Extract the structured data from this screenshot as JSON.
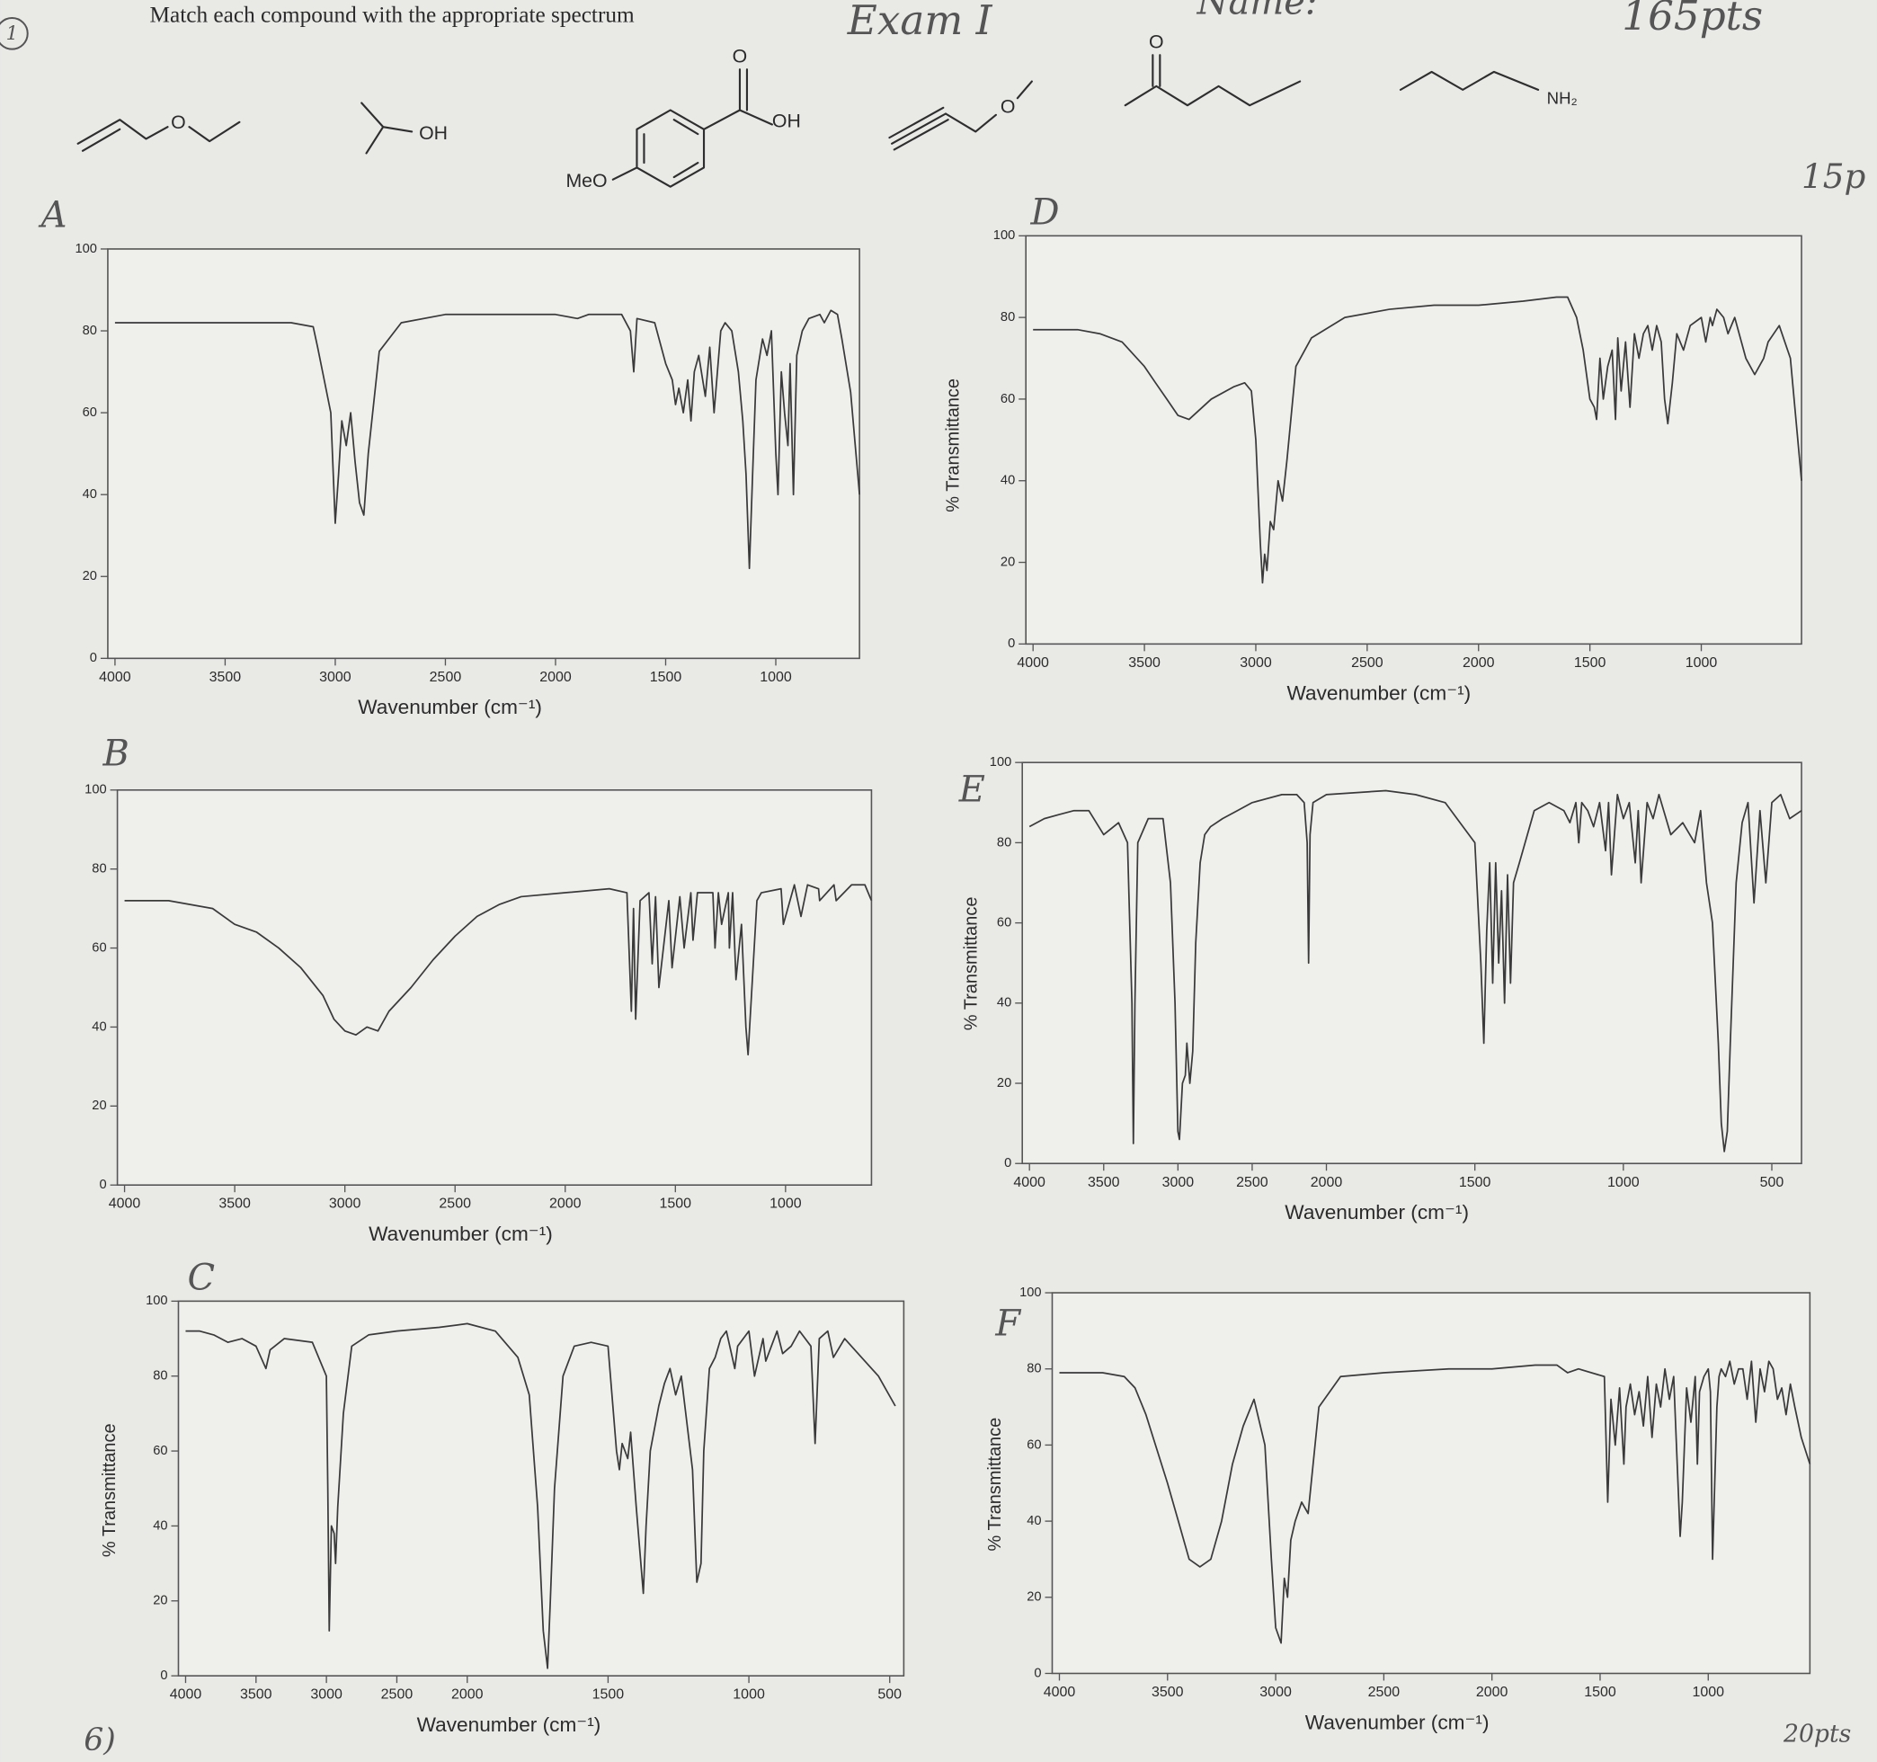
{
  "header": {
    "number": "1",
    "instruction": "Match each compound with the appropriate spectrum",
    "exam": "Exam I",
    "name": "Name:",
    "points": "165pts"
  },
  "structure_labels": [
    "O",
    "OH",
    "O",
    "OH",
    "MeO",
    "O",
    "O",
    "NH₂"
  ],
  "notes": {
    "section_points": "15p",
    "bottom_points": "20pts",
    "next_question": "6)"
  },
  "chart_data": [
    {
      "type": "line",
      "title": "A",
      "xlabel": "Wavenumber (cm⁻¹)",
      "color": "#3a3a3a",
      "xlim": [
        4000,
        620
      ],
      "ylim": [
        0,
        100
      ],
      "xticks": [
        4000,
        3500,
        3000,
        2500,
        2000,
        1500,
        1000
      ],
      "yticks": [
        0,
        20,
        40,
        60,
        80,
        100
      ],
      "x": [
        4000,
        3500,
        3200,
        3100,
        3080,
        3050,
        3020,
        3000,
        2985,
        2970,
        2950,
        2930,
        2910,
        2890,
        2870,
        2850,
        2800,
        2700,
        2500,
        2200,
        2000,
        1900,
        1850,
        1800,
        1700,
        1660,
        1645,
        1630,
        1550,
        1500,
        1470,
        1455,
        1440,
        1420,
        1400,
        1385,
        1370,
        1350,
        1320,
        1300,
        1280,
        1250,
        1230,
        1200,
        1170,
        1150,
        1135,
        1120,
        1105,
        1090,
        1060,
        1040,
        1020,
        1000,
        990,
        975,
        960,
        945,
        935,
        920,
        905,
        880,
        850,
        800,
        780,
        750,
        720,
        700,
        660,
        620
      ],
      "values": [
        82,
        82,
        82,
        81,
        76,
        68,
        60,
        33,
        45,
        58,
        52,
        60,
        48,
        38,
        35,
        50,
        75,
        82,
        84,
        84,
        84,
        83,
        84,
        84,
        84,
        80,
        70,
        83,
        82,
        72,
        68,
        62,
        66,
        60,
        68,
        58,
        70,
        74,
        64,
        76,
        60,
        80,
        82,
        80,
        70,
        58,
        45,
        22,
        45,
        68,
        78,
        74,
        80,
        50,
        40,
        70,
        60,
        52,
        72,
        40,
        74,
        80,
        83,
        84,
        82,
        85,
        84,
        78,
        65,
        40
      ]
    },
    {
      "type": "line",
      "title": "B",
      "xlabel": "Wavenumber (cm⁻¹)",
      "color": "#3a3a3a",
      "xlim": [
        4000,
        610
      ],
      "ylim": [
        0,
        100
      ],
      "xticks": [
        4000,
        3500,
        3000,
        2500,
        2000,
        1500,
        1000
      ],
      "yticks": [
        0,
        20,
        40,
        60,
        80,
        100
      ],
      "x": [
        4000,
        3800,
        3600,
        3500,
        3400,
        3300,
        3200,
        3100,
        3050,
        3000,
        2950,
        2900,
        2850,
        2800,
        2700,
        2600,
        2500,
        2400,
        2300,
        2200,
        2000,
        1800,
        1720,
        1700,
        1690,
        1680,
        1660,
        1620,
        1605,
        1590,
        1575,
        1530,
        1515,
        1480,
        1460,
        1430,
        1420,
        1400,
        1330,
        1320,
        1305,
        1290,
        1260,
        1255,
        1240,
        1225,
        1200,
        1180,
        1170,
        1130,
        1110,
        1020,
        1010,
        960,
        930,
        900,
        850,
        845,
        780,
        770,
        700,
        640,
        610
      ],
      "values": [
        72,
        72,
        70,
        66,
        64,
        60,
        55,
        48,
        42,
        39,
        38,
        40,
        39,
        44,
        50,
        57,
        63,
        68,
        71,
        73,
        74,
        75,
        74,
        44,
        70,
        42,
        72,
        74,
        56,
        73,
        50,
        72,
        55,
        73,
        60,
        74,
        62,
        74,
        74,
        60,
        74,
        66,
        74,
        60,
        74,
        52,
        66,
        40,
        33,
        72,
        74,
        75,
        66,
        76,
        68,
        76,
        75,
        72,
        76,
        72,
        76,
        76,
        72
      ]
    },
    {
      "type": "line",
      "title": "C",
      "xlabel": "Wavenumber (cm⁻¹)",
      "ylabel": "% Transmittance",
      "color": "#3a3a3a",
      "xlim": [
        4000,
        450
      ],
      "ylim": [
        0,
        100
      ],
      "xscale": {
        "break": 2000,
        "factor": 2
      },
      "xticks": [
        4000,
        3500,
        3000,
        2500,
        2000,
        1500,
        1000,
        500
      ],
      "yticks": [
        0,
        20,
        40,
        60,
        80,
        100
      ],
      "x": [
        4000,
        3900,
        3800,
        3700,
        3600,
        3500,
        3430,
        3400,
        3300,
        3100,
        3000,
        2990,
        2980,
        2965,
        2945,
        2935,
        2920,
        2880,
        2820,
        2700,
        2500,
        2200,
        2000,
        1900,
        1820,
        1780,
        1750,
        1730,
        1715,
        1705,
        1690,
        1660,
        1620,
        1560,
        1500,
        1470,
        1460,
        1450,
        1430,
        1420,
        1400,
        1375,
        1365,
        1350,
        1320,
        1300,
        1280,
        1260,
        1240,
        1200,
        1185,
        1170,
        1160,
        1140,
        1120,
        1100,
        1080,
        1050,
        1040,
        1000,
        980,
        950,
        940,
        900,
        880,
        850,
        820,
        780,
        765,
        750,
        720,
        700,
        660,
        600,
        540,
        480
      ],
      "values": [
        92,
        92,
        91,
        89,
        90,
        88,
        82,
        87,
        90,
        89,
        80,
        50,
        12,
        40,
        38,
        30,
        45,
        70,
        88,
        91,
        92,
        93,
        94,
        92,
        85,
        75,
        45,
        12,
        2,
        20,
        50,
        80,
        88,
        89,
        88,
        60,
        55,
        62,
        58,
        65,
        45,
        22,
        40,
        60,
        72,
        78,
        82,
        75,
        80,
        55,
        25,
        30,
        60,
        82,
        85,
        90,
        92,
        82,
        88,
        92,
        80,
        90,
        84,
        92,
        86,
        88,
        92,
        88,
        62,
        90,
        92,
        85,
        90,
        85,
        80,
        72
      ]
    },
    {
      "type": "line",
      "title": "D",
      "xlabel": "Wavenumber (cm⁻¹)",
      "ylabel": "% Transmittance",
      "color": "#3a3a3a",
      "xlim": [
        4000,
        550
      ],
      "ylim": [
        0,
        100
      ],
      "xticks": [
        4000,
        3500,
        3000,
        2500,
        2000,
        1500,
        1000
      ],
      "yticks": [
        0,
        20,
        40,
        60,
        80,
        100
      ],
      "x": [
        4000,
        3800,
        3700,
        3600,
        3500,
        3450,
        3400,
        3350,
        3300,
        3200,
        3100,
        3050,
        3020,
        3000,
        2980,
        2970,
        2960,
        2950,
        2935,
        2920,
        2900,
        2880,
        2860,
        2820,
        2750,
        2600,
        2400,
        2200,
        2000,
        1800,
        1650,
        1600,
        1560,
        1530,
        1500,
        1480,
        1470,
        1455,
        1440,
        1420,
        1400,
        1385,
        1375,
        1360,
        1340,
        1320,
        1300,
        1280,
        1260,
        1240,
        1220,
        1200,
        1180,
        1165,
        1150,
        1130,
        1110,
        1080,
        1050,
        1000,
        980,
        960,
        950,
        930,
        900,
        880,
        850,
        820,
        800,
        760,
        720,
        700,
        650,
        600,
        550
      ],
      "values": [
        77,
        77,
        76,
        74,
        68,
        64,
        60,
        56,
        55,
        60,
        63,
        64,
        62,
        50,
        25,
        15,
        22,
        18,
        30,
        28,
        40,
        35,
        45,
        68,
        75,
        80,
        82,
        83,
        83,
        84,
        85,
        85,
        80,
        72,
        60,
        58,
        55,
        70,
        60,
        68,
        72,
        55,
        75,
        62,
        74,
        58,
        76,
        70,
        76,
        78,
        72,
        78,
        74,
        60,
        54,
        64,
        76,
        72,
        78,
        80,
        74,
        80,
        78,
        82,
        80,
        76,
        80,
        74,
        70,
        66,
        70,
        74,
        78,
        70,
        40
      ]
    },
    {
      "type": "line",
      "title": "E",
      "xlabel": "Wavenumber (cm⁻¹)",
      "ylabel": "% Transmittance",
      "color": "#3a3a3a",
      "xlim": [
        4000,
        400
      ],
      "ylim": [
        0,
        100
      ],
      "xscale": {
        "break": 2000,
        "factor": 2
      },
      "xticks": [
        4000,
        3500,
        3000,
        2500,
        2000,
        1500,
        1000,
        500
      ],
      "yticks": [
        0,
        20,
        40,
        60,
        80,
        100
      ],
      "x": [
        4000,
        3900,
        3800,
        3700,
        3600,
        3500,
        3400,
        3340,
        3310,
        3300,
        3290,
        3270,
        3200,
        3100,
        3050,
        3020,
        3000,
        2990,
        2970,
        2950,
        2940,
        2920,
        2900,
        2880,
        2850,
        2820,
        2780,
        2700,
        2600,
        2500,
        2300,
        2200,
        2150,
        2130,
        2120,
        2110,
        2090,
        2000,
        1800,
        1700,
        1600,
        1560,
        1500,
        1480,
        1470,
        1460,
        1450,
        1440,
        1430,
        1420,
        1410,
        1400,
        1390,
        1380,
        1370,
        1350,
        1300,
        1250,
        1200,
        1180,
        1160,
        1150,
        1140,
        1120,
        1100,
        1080,
        1060,
        1050,
        1040,
        1020,
        1000,
        980,
        960,
        950,
        940,
        920,
        900,
        880,
        840,
        800,
        760,
        740,
        720,
        700,
        680,
        670,
        660,
        650,
        640,
        620,
        600,
        580,
        560,
        540,
        520,
        500,
        470,
        440,
        400
      ],
      "values": [
        84,
        86,
        87,
        88,
        88,
        82,
        85,
        80,
        40,
        5,
        40,
        80,
        86,
        86,
        70,
        40,
        8,
        6,
        20,
        22,
        30,
        20,
        28,
        55,
        75,
        82,
        84,
        86,
        88,
        90,
        92,
        92,
        90,
        80,
        50,
        82,
        90,
        92,
        93,
        92,
        90,
        86,
        80,
        50,
        30,
        58,
        75,
        45,
        75,
        50,
        68,
        40,
        72,
        45,
        70,
        75,
        88,
        90,
        88,
        85,
        90,
        80,
        90,
        88,
        84,
        90,
        78,
        90,
        72,
        92,
        86,
        90,
        75,
        88,
        70,
        90,
        86,
        92,
        82,
        85,
        80,
        88,
        70,
        60,
        30,
        10,
        3,
        8,
        30,
        70,
        85,
        90,
        65,
        88,
        70,
        90,
        92,
        86,
        88
      ]
    },
    {
      "type": "line",
      "title": "F",
      "xlabel": "Wavenumber (cm⁻¹)",
      "ylabel": "% Transmittance",
      "color": "#3a3a3a",
      "xlim": [
        4000,
        530
      ],
      "ylim": [
        0,
        100
      ],
      "xticks": [
        4000,
        3500,
        3000,
        2500,
        2000,
        1500,
        1000
      ],
      "yticks": [
        0,
        20,
        40,
        60,
        80,
        100
      ],
      "x": [
        4000,
        3800,
        3700,
        3650,
        3600,
        3500,
        3450,
        3400,
        3350,
        3300,
        3250,
        3200,
        3150,
        3100,
        3050,
        3020,
        3000,
        2975,
        2960,
        2945,
        2930,
        2910,
        2880,
        2850,
        2800,
        2700,
        2500,
        2200,
        2000,
        1800,
        1700,
        1650,
        1600,
        1480,
        1465,
        1450,
        1430,
        1410,
        1390,
        1380,
        1360,
        1340,
        1320,
        1300,
        1280,
        1260,
        1240,
        1220,
        1200,
        1180,
        1160,
        1140,
        1130,
        1120,
        1100,
        1080,
        1060,
        1050,
        1040,
        1020,
        1000,
        990,
        980,
        960,
        950,
        940,
        920,
        900,
        880,
        860,
        840,
        820,
        800,
        780,
        760,
        740,
        720,
        700,
        680,
        660,
        640,
        620,
        600,
        570,
        530
      ],
      "values": [
        79,
        79,
        78,
        75,
        68,
        50,
        40,
        30,
        28,
        30,
        40,
        55,
        65,
        72,
        60,
        30,
        12,
        8,
        25,
        20,
        35,
        40,
        45,
        42,
        70,
        78,
        79,
        80,
        80,
        81,
        81,
        79,
        80,
        78,
        45,
        72,
        60,
        75,
        55,
        70,
        76,
        68,
        74,
        65,
        78,
        62,
        76,
        70,
        80,
        72,
        78,
        50,
        36,
        45,
        75,
        66,
        78,
        55,
        74,
        78,
        80,
        74,
        30,
        70,
        78,
        80,
        78,
        82,
        76,
        80,
        80,
        72,
        82,
        66,
        80,
        74,
        82,
        80,
        72,
        75,
        68,
        76,
        70,
        62,
        55
      ]
    }
  ]
}
